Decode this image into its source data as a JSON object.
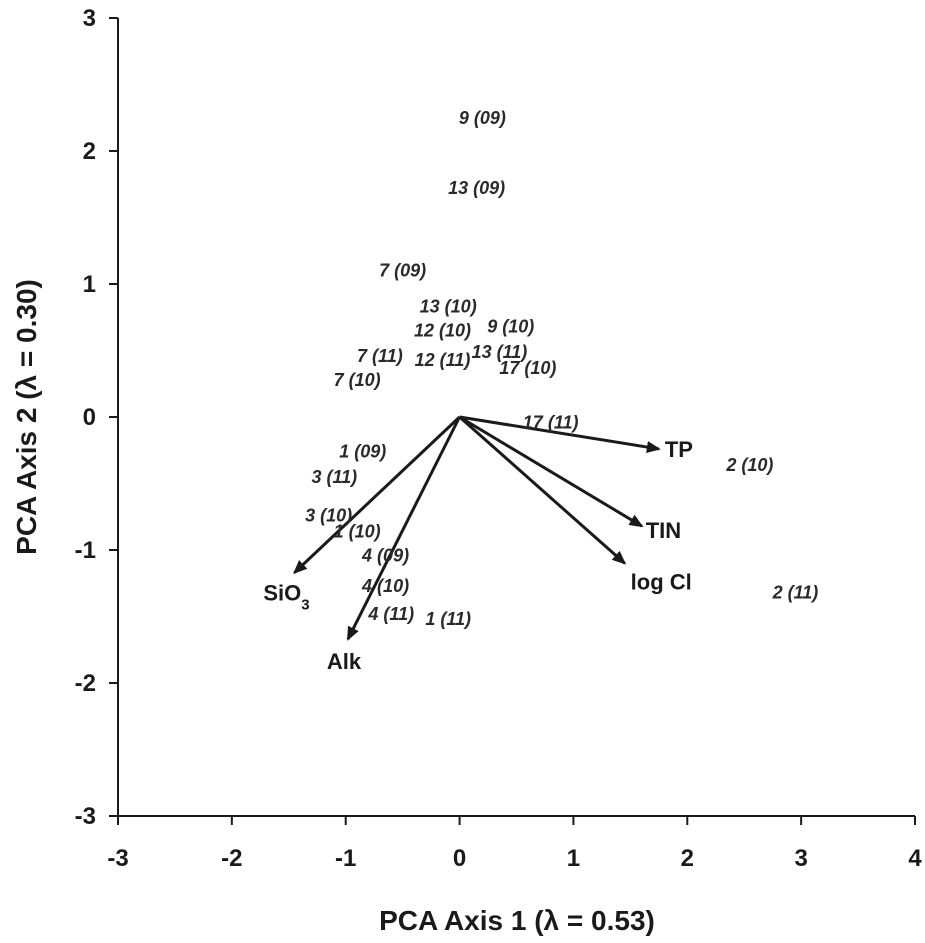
{
  "chart_data": {
    "type": "scatter",
    "xlabel": "PCA Axis 1 (λ = 0.53)",
    "ylabel": "PCA Axis 2 (λ = 0.30)",
    "xlim": [
      -3,
      4
    ],
    "ylim": [
      -3,
      3
    ],
    "xticks": [
      "-3",
      "-2",
      "-1",
      "0",
      "1",
      "2",
      "3",
      "4"
    ],
    "yticks": [
      "-3",
      "-2",
      "-1",
      "0",
      "1",
      "2",
      "3"
    ],
    "points": [
      {
        "label": "9 (09)",
        "x": 0.2,
        "y": 2.25
      },
      {
        "label": "13 (09)",
        "x": 0.15,
        "y": 1.72
      },
      {
        "label": "7 (09)",
        "x": -0.5,
        "y": 1.1
      },
      {
        "label": "13 (10)",
        "x": -0.1,
        "y": 0.83
      },
      {
        "label": "12 (10)",
        "x": -0.15,
        "y": 0.65
      },
      {
        "label": "9 (10)",
        "x": 0.45,
        "y": 0.68
      },
      {
        "label": "7 (11)",
        "x": -0.7,
        "y": 0.46
      },
      {
        "label": "12 (11)",
        "x": -0.15,
        "y": 0.43
      },
      {
        "label": "13 (11)",
        "x": 0.35,
        "y": 0.49
      },
      {
        "label": "17 (10)",
        "x": 0.6,
        "y": 0.37
      },
      {
        "label": "7 (10)",
        "x": -0.9,
        "y": 0.28
      },
      {
        "label": "17 (11)",
        "x": 0.8,
        "y": -0.04
      },
      {
        "label": "1 (09)",
        "x": -0.85,
        "y": -0.26
      },
      {
        "label": "2 (10)",
        "x": 2.55,
        "y": -0.36
      },
      {
        "label": "3 (11)",
        "x": -1.1,
        "y": -0.45
      },
      {
        "label": "3 (10)",
        "x": -1.15,
        "y": -0.74
      },
      {
        "label": "1 (10)",
        "x": -0.9,
        "y": -0.86
      },
      {
        "label": "4 (09)",
        "x": -0.65,
        "y": -1.04
      },
      {
        "label": "4 (10)",
        "x": -0.65,
        "y": -1.27
      },
      {
        "label": "2 (11)",
        "x": 2.95,
        "y": -1.32
      },
      {
        "label": "4 (11)",
        "x": -0.6,
        "y": -1.48
      },
      {
        "label": "1 (11)",
        "x": -0.1,
        "y": -1.52
      }
    ],
    "vectors": [
      {
        "label": "TP",
        "x": 1.75,
        "y": -0.24
      },
      {
        "label": "TIN",
        "x": 1.6,
        "y": -0.82
      },
      {
        "label": "log Cl",
        "x": 1.45,
        "y": -1.1
      },
      {
        "label": "SiO",
        "label_sub": "3",
        "x": -1.45,
        "y": -1.17
      },
      {
        "label": "Alk",
        "x": -0.98,
        "y": -1.67
      }
    ]
  }
}
